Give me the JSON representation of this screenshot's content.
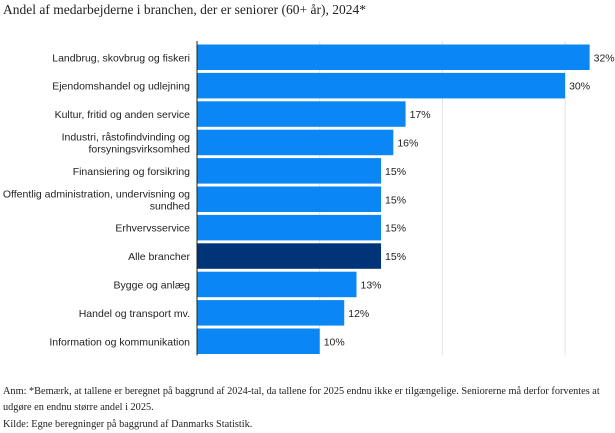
{
  "title": "Andel af medarbejderne i branchen, der er seniorer (60+ år), 2024*",
  "chart_data": {
    "type": "bar",
    "orientation": "horizontal",
    "title": "Andel af medarbejderne i branchen, der er seniorer (60+ år), 2024*",
    "categories": [
      [
        "Landbrug, skovbrug og fiskeri"
      ],
      [
        "Ejendomshandel og udlejning"
      ],
      [
        "Kultur, fritid og anden service"
      ],
      [
        "Industri, råstofindvinding og",
        "forsyningsvirksomhed"
      ],
      [
        "Finansiering og forsikring"
      ],
      [
        "Offentlig administration, undervisning og",
        "sundhed"
      ],
      [
        "Erhvervsservice"
      ],
      [
        "Alle brancher"
      ],
      [
        "Bygge og anlæg"
      ],
      [
        "Handel og transport mv."
      ],
      [
        "Information og kommunikation"
      ]
    ],
    "values": [
      32,
      30,
      17,
      16,
      15,
      15,
      15,
      15,
      13,
      12,
      10
    ],
    "labels": [
      "32%",
      "30%",
      "17%",
      "16%",
      "15%",
      "15%",
      "15%",
      "15%",
      "13%",
      "12%",
      "10%"
    ],
    "highlight_index": 7,
    "xlim": [
      0,
      32
    ],
    "grid": true,
    "colors": {
      "bar": "#0a86f5",
      "highlight": "#003478",
      "grid": "#e3e3e3",
      "axis": "#222222"
    }
  },
  "notes": {
    "line1": "Anm: *Bemærk, at tallene er beregnet på baggrund af 2024-tal, da tallene for 2025 endnu ikke er tilgængelige. Seniorerne må derfor forventes at",
    "line2": "udgøre en endnu større andel i 2025.",
    "source": "Kilde: Egne beregninger på baggrund af Danmarks Statistik."
  }
}
